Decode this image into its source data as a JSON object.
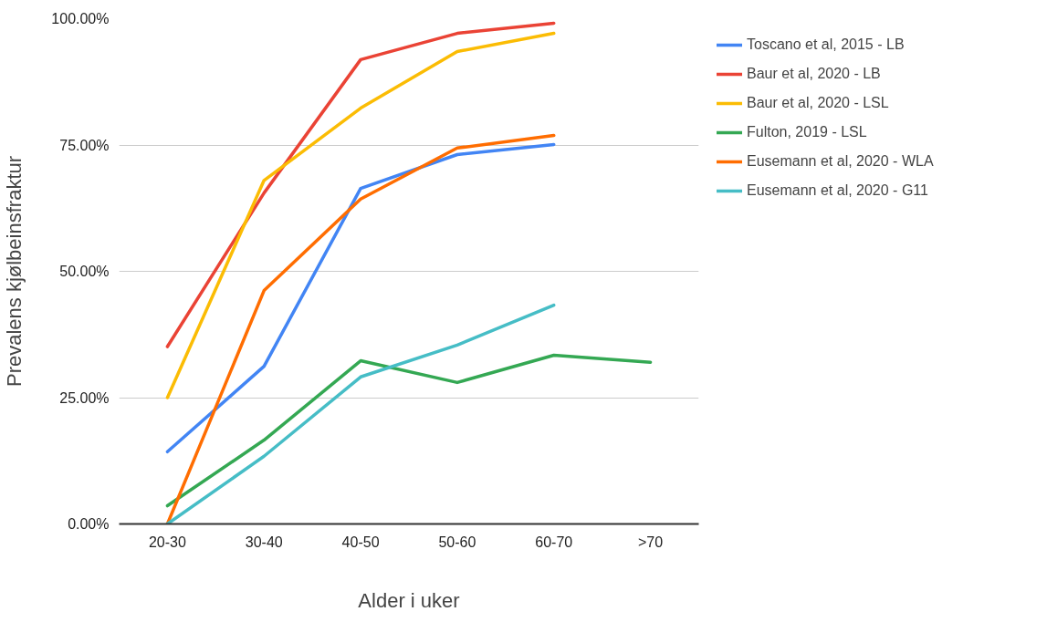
{
  "chart_data": {
    "type": "line",
    "xlabel": "Alder i uker",
    "ylabel": "Prevalens kjølbeinsfraktur",
    "categories": [
      "20-30",
      "30-40",
      "40-50",
      "50-60",
      "60-70",
      ">70"
    ],
    "series": [
      {
        "name": "Toscano et al, 2015 - LB",
        "color": "#4285f4",
        "values": [
          14.3,
          31.2,
          66.4,
          73.1,
          75.1,
          null
        ]
      },
      {
        "name": "Baur et al, 2020 - LB",
        "color": "#ea4335",
        "values": [
          35.1,
          65.5,
          91.9,
          97.1,
          99.1,
          null
        ]
      },
      {
        "name": "Baur et al, 2020 - LSL",
        "color": "#fbbc04",
        "values": [
          25,
          68,
          82.3,
          93.5,
          97.1,
          null
        ]
      },
      {
        "name": "Fulton, 2019 - LSL",
        "color": "#34a853",
        "values": [
          3.6,
          16.6,
          32.3,
          28,
          33.4,
          32
        ]
      },
      {
        "name": "Eusemann et al, 2020 - WLA",
        "color": "#ff6d01",
        "values": [
          0,
          46.2,
          64.3,
          74.4,
          76.9,
          null
        ]
      },
      {
        "name": "Eusemann et al, 2020 - G11",
        "color": "#46bdc6",
        "values": [
          0,
          13.4,
          29.1,
          35.4,
          43.3,
          null
        ]
      }
    ],
    "ylim": [
      0,
      100
    ],
    "yticks": [
      {
        "value": 0,
        "label": "0.00%"
      },
      {
        "value": 25,
        "label": "25.00%"
      },
      {
        "value": 50,
        "label": "50.00%"
      },
      {
        "value": 75,
        "label": "75.00%"
      },
      {
        "value": 100,
        "label": "100.00%"
      }
    ],
    "grid": "y",
    "legend": "top right",
    "marker": "none",
    "line_style": "solid"
  }
}
